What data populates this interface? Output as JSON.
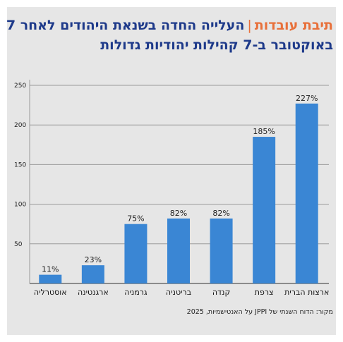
{
  "header": {
    "brand": "תיבת עובדות",
    "separator": "|",
    "title_line1": "העלייה החדה בשנאת היהודים לאחר 7",
    "title_line2": "באוקטובר ב-7 קהילות יהודיות גדולות"
  },
  "source": "מקור: הדוח השנתי של JPPI על האנטישמיות, 2025",
  "chart_data": {
    "type": "bar",
    "title": "העלייה החדה בשנאת היהודים לאחר 7 באוקטובר ב-7 קהילות יהודיות גדולות",
    "xlabel": "",
    "ylabel": "",
    "categories": [
      "אוסטרליה",
      "ארגנטינה",
      "גרמניה",
      "בריטניה",
      "קנדה",
      "צרפת",
      "ארצות הברית"
    ],
    "values": [
      11,
      23,
      75,
      82,
      82,
      185,
      227
    ],
    "value_labels": [
      "11%",
      "23%",
      "75%",
      "82%",
      "82%",
      "185%",
      "227%"
    ],
    "y_ticks": [
      50,
      100,
      150,
      200,
      250
    ],
    "ylim": [
      0,
      250
    ],
    "grid": true,
    "bar_color": "#3a86d4"
  }
}
